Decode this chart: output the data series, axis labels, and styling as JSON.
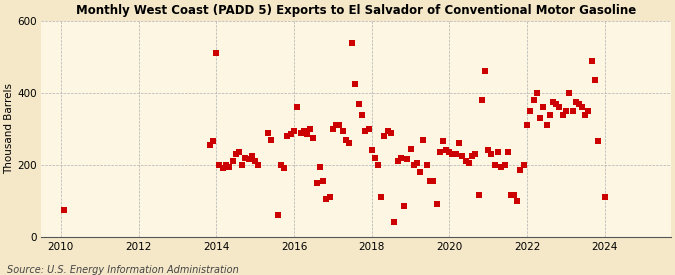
{
  "title": "Monthly West Coast (PADD 5) Exports to El Salvador of Conventional Motor Gasoline",
  "ylabel": "Thousand Barrels",
  "source": "Source: U.S. Energy Information Administration",
  "background_color": "#f5e8c8",
  "plot_background_color": "#fdf6e3",
  "marker_color": "#cc0000",
  "marker_size": 5,
  "ylim": [
    0,
    600
  ],
  "yticks": [
    0,
    200,
    400,
    600
  ],
  "xlim_start": 2009.5,
  "xlim_end": 2025.7,
  "xticks": [
    2010,
    2012,
    2014,
    2016,
    2018,
    2020,
    2022,
    2024
  ],
  "data": [
    [
      2010.08,
      75
    ],
    [
      2013.83,
      255
    ],
    [
      2013.92,
      265
    ],
    [
      2014.0,
      510
    ],
    [
      2014.08,
      200
    ],
    [
      2014.17,
      190
    ],
    [
      2014.25,
      200
    ],
    [
      2014.33,
      195
    ],
    [
      2014.42,
      210
    ],
    [
      2014.5,
      230
    ],
    [
      2014.58,
      235
    ],
    [
      2014.67,
      200
    ],
    [
      2014.75,
      220
    ],
    [
      2014.83,
      215
    ],
    [
      2014.92,
      225
    ],
    [
      2015.0,
      210
    ],
    [
      2015.08,
      200
    ],
    [
      2015.33,
      290
    ],
    [
      2015.42,
      270
    ],
    [
      2015.58,
      60
    ],
    [
      2015.67,
      200
    ],
    [
      2015.75,
      190
    ],
    [
      2015.83,
      280
    ],
    [
      2015.92,
      285
    ],
    [
      2016.0,
      295
    ],
    [
      2016.08,
      360
    ],
    [
      2016.17,
      290
    ],
    [
      2016.25,
      295
    ],
    [
      2016.33,
      285
    ],
    [
      2016.42,
      300
    ],
    [
      2016.5,
      275
    ],
    [
      2016.58,
      150
    ],
    [
      2016.67,
      195
    ],
    [
      2016.75,
      155
    ],
    [
      2016.83,
      105
    ],
    [
      2016.92,
      110
    ],
    [
      2017.0,
      300
    ],
    [
      2017.08,
      310
    ],
    [
      2017.17,
      310
    ],
    [
      2017.25,
      295
    ],
    [
      2017.33,
      270
    ],
    [
      2017.42,
      260
    ],
    [
      2017.5,
      540
    ],
    [
      2017.58,
      425
    ],
    [
      2017.67,
      370
    ],
    [
      2017.75,
      340
    ],
    [
      2017.83,
      295
    ],
    [
      2017.92,
      300
    ],
    [
      2018.0,
      240
    ],
    [
      2018.08,
      220
    ],
    [
      2018.17,
      200
    ],
    [
      2018.25,
      110
    ],
    [
      2018.33,
      280
    ],
    [
      2018.42,
      295
    ],
    [
      2018.5,
      290
    ],
    [
      2018.58,
      40
    ],
    [
      2018.67,
      210
    ],
    [
      2018.75,
      220
    ],
    [
      2018.83,
      85
    ],
    [
      2018.92,
      215
    ],
    [
      2019.0,
      245
    ],
    [
      2019.08,
      200
    ],
    [
      2019.17,
      205
    ],
    [
      2019.25,
      180
    ],
    [
      2019.33,
      270
    ],
    [
      2019.42,
      200
    ],
    [
      2019.5,
      155
    ],
    [
      2019.58,
      155
    ],
    [
      2019.67,
      90
    ],
    [
      2019.75,
      235
    ],
    [
      2019.83,
      265
    ],
    [
      2019.92,
      240
    ],
    [
      2020.0,
      235
    ],
    [
      2020.08,
      230
    ],
    [
      2020.17,
      230
    ],
    [
      2020.25,
      260
    ],
    [
      2020.33,
      225
    ],
    [
      2020.42,
      210
    ],
    [
      2020.5,
      205
    ],
    [
      2020.58,
      225
    ],
    [
      2020.67,
      230
    ],
    [
      2020.75,
      115
    ],
    [
      2020.83,
      380
    ],
    [
      2020.92,
      460
    ],
    [
      2021.0,
      240
    ],
    [
      2021.08,
      230
    ],
    [
      2021.17,
      200
    ],
    [
      2021.25,
      235
    ],
    [
      2021.33,
      195
    ],
    [
      2021.42,
      200
    ],
    [
      2021.5,
      235
    ],
    [
      2021.58,
      115
    ],
    [
      2021.67,
      115
    ],
    [
      2021.75,
      100
    ],
    [
      2021.83,
      185
    ],
    [
      2021.92,
      200
    ],
    [
      2022.0,
      310
    ],
    [
      2022.08,
      350
    ],
    [
      2022.17,
      380
    ],
    [
      2022.25,
      400
    ],
    [
      2022.33,
      330
    ],
    [
      2022.42,
      360
    ],
    [
      2022.5,
      310
    ],
    [
      2022.58,
      340
    ],
    [
      2022.67,
      375
    ],
    [
      2022.75,
      370
    ],
    [
      2022.83,
      360
    ],
    [
      2022.92,
      340
    ],
    [
      2023.0,
      350
    ],
    [
      2023.08,
      400
    ],
    [
      2023.17,
      350
    ],
    [
      2023.25,
      375
    ],
    [
      2023.33,
      370
    ],
    [
      2023.42,
      360
    ],
    [
      2023.5,
      340
    ],
    [
      2023.58,
      350
    ],
    [
      2023.67,
      490
    ],
    [
      2023.75,
      435
    ],
    [
      2023.83,
      265
    ],
    [
      2024.0,
      110
    ]
  ]
}
